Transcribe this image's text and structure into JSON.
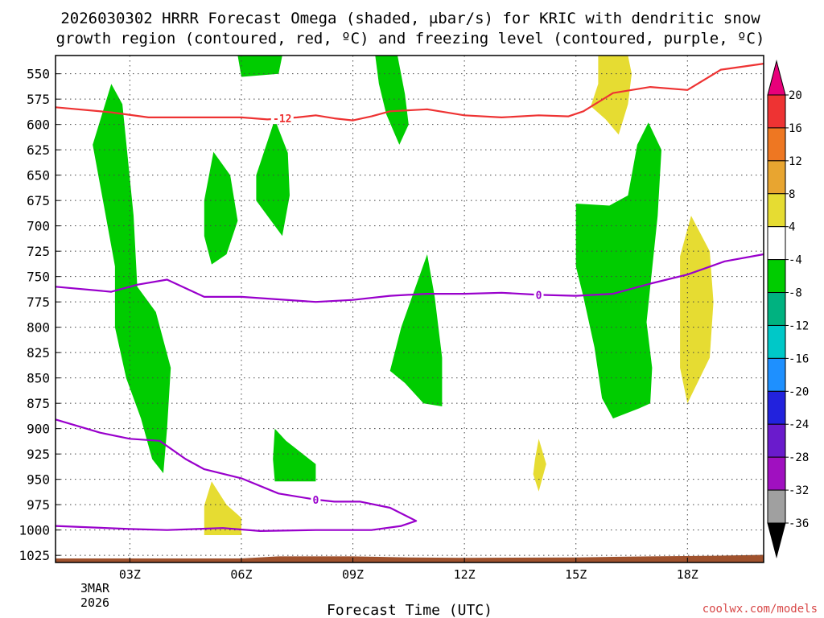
{
  "chart_data": {
    "type": "time-height cross section",
    "title_line1": "2026030302 HRRR Forecast Omega (shaded, μbar/s) for KRIC with dendritic snow",
    "title_line2": "growth region (contoured, red, ºC) and freezing level (contoured, purple, ºC)",
    "xlabel": "Forecast Time (UTC)",
    "date_label_line1": "3MAR",
    "date_label_line2": "2026",
    "credit": "coolwx.com/models",
    "x_range_hours": [
      1.0,
      20.05
    ],
    "y_range_hpa": [
      532,
      1032
    ],
    "x_ticks": [
      {
        "hour": 3,
        "label": "03Z"
      },
      {
        "hour": 6,
        "label": "06Z"
      },
      {
        "hour": 9,
        "label": "09Z"
      },
      {
        "hour": 12,
        "label": "12Z"
      },
      {
        "hour": 15,
        "label": "15Z"
      },
      {
        "hour": 18,
        "label": "18Z"
      }
    ],
    "y_ticks": [
      550,
      575,
      600,
      625,
      650,
      675,
      700,
      725,
      750,
      775,
      800,
      825,
      850,
      875,
      900,
      925,
      950,
      975,
      1000,
      1025
    ],
    "colorbar": {
      "labels": [
        "20",
        "16",
        "12",
        "8",
        "4",
        "-4",
        "-8",
        "-12",
        "-16",
        "-20",
        "-24",
        "-28",
        "-32",
        "-36"
      ],
      "bins": [
        {
          "from": 20,
          "to": 16,
          "color": "#ee3333"
        },
        {
          "from": 16,
          "to": 12,
          "color": "#ee7722"
        },
        {
          "from": 12,
          "to": 8,
          "color": "#e8a530"
        },
        {
          "from": 8,
          "to": 4,
          "color": "#e6dc32"
        },
        {
          "from": 4,
          "to": -4,
          "color": "#ffffff"
        },
        {
          "from": -4,
          "to": -8,
          "color": "#00cc00"
        },
        {
          "from": -8,
          "to": -12,
          "color": "#00b280"
        },
        {
          "from": -12,
          "to": -16,
          "color": "#00c8c8"
        },
        {
          "from": -16,
          "to": -20,
          "color": "#1e90ff"
        },
        {
          "from": -20,
          "to": -24,
          "color": "#2222dd"
        },
        {
          "from": -24,
          "to": -28,
          "color": "#6a1bcc"
        },
        {
          "from": -28,
          "to": -32,
          "color": "#a010c0"
        },
        {
          "from": -32,
          "to": -36,
          "color": "#a0a0a0"
        }
      ],
      "overflow_high_color": "#e8007a",
      "overflow_low_color": "#000000"
    },
    "omega_regions": [
      {
        "color": "#00cc00",
        "points": [
          [
            2.0,
            620
          ],
          [
            2.5,
            560
          ],
          [
            2.8,
            580
          ],
          [
            3.1,
            690
          ],
          [
            3.2,
            760
          ],
          [
            3.7,
            785
          ],
          [
            4.1,
            840
          ],
          [
            4.0,
            900
          ],
          [
            3.9,
            944
          ],
          [
            3.6,
            930
          ],
          [
            3.3,
            890
          ],
          [
            2.9,
            850
          ],
          [
            2.6,
            800
          ],
          [
            2.6,
            740
          ],
          [
            2.3,
            680
          ]
        ]
      },
      {
        "color": "#00cc00",
        "points": [
          [
            5.0,
            675
          ],
          [
            5.25,
            627
          ],
          [
            5.7,
            650
          ],
          [
            5.9,
            695
          ],
          [
            5.6,
            728
          ],
          [
            5.2,
            738
          ],
          [
            5.0,
            710
          ]
        ]
      },
      {
        "color": "#00cc00",
        "points": [
          [
            6.4,
            650
          ],
          [
            6.9,
            595
          ],
          [
            7.25,
            628
          ],
          [
            7.3,
            670
          ],
          [
            7.1,
            710
          ],
          [
            6.8,
            695
          ],
          [
            6.4,
            675
          ]
        ]
      },
      {
        "color": "#00cc00",
        "points": [
          [
            5.9,
            532
          ],
          [
            7.1,
            532
          ],
          [
            7.0,
            550
          ],
          [
            6.0,
            553
          ]
        ]
      },
      {
        "color": "#00cc00",
        "points": [
          [
            9.6,
            532
          ],
          [
            10.2,
            532
          ],
          [
            10.4,
            570
          ],
          [
            10.5,
            600
          ],
          [
            10.25,
            620
          ],
          [
            9.9,
            590
          ],
          [
            9.7,
            560
          ]
        ]
      },
      {
        "color": "#00cc00",
        "points": [
          [
            10.0,
            843
          ],
          [
            10.3,
            800
          ],
          [
            11.0,
            728
          ],
          [
            11.2,
            770
          ],
          [
            11.4,
            830
          ],
          [
            11.4,
            878
          ],
          [
            10.9,
            875
          ],
          [
            10.4,
            855
          ]
        ]
      },
      {
        "color": "#00cc00",
        "points": [
          [
            6.9,
            900
          ],
          [
            7.2,
            912
          ],
          [
            8.0,
            935
          ],
          [
            8.0,
            952
          ],
          [
            6.9,
            952
          ],
          [
            6.85,
            930
          ]
        ]
      },
      {
        "color": "#00cc00",
        "points": [
          [
            15.0,
            678
          ],
          [
            15.9,
            680
          ],
          [
            16.4,
            670
          ],
          [
            16.65,
            620
          ],
          [
            16.95,
            598
          ],
          [
            17.3,
            625
          ],
          [
            17.2,
            690
          ],
          [
            17.0,
            760
          ],
          [
            16.9,
            795
          ],
          [
            17.05,
            840
          ],
          [
            17.0,
            875
          ],
          [
            16.7,
            880
          ],
          [
            16.0,
            890
          ],
          [
            15.7,
            870
          ],
          [
            15.5,
            820
          ],
          [
            15.2,
            770
          ],
          [
            15.0,
            740
          ]
        ]
      },
      {
        "color": "#e6dc32",
        "points": [
          [
            5.0,
            976
          ],
          [
            5.2,
            952
          ],
          [
            5.6,
            975
          ],
          [
            6.0,
            988
          ],
          [
            6.0,
            1005
          ],
          [
            5.0,
            1005
          ]
        ]
      },
      {
        "color": "#e6dc32",
        "points": [
          [
            13.9,
            930
          ],
          [
            14.0,
            910
          ],
          [
            14.2,
            935
          ],
          [
            14.0,
            962
          ],
          [
            13.85,
            945
          ]
        ]
      },
      {
        "color": "#e6dc32",
        "points": [
          [
            15.6,
            532
          ],
          [
            16.4,
            532
          ],
          [
            16.5,
            550
          ],
          [
            16.4,
            580
          ],
          [
            16.15,
            610
          ],
          [
            15.8,
            595
          ],
          [
            15.4,
            582
          ],
          [
            15.6,
            560
          ]
        ]
      },
      {
        "color": "#e6dc32",
        "points": [
          [
            17.8,
            730
          ],
          [
            18.1,
            690
          ],
          [
            18.6,
            725
          ],
          [
            18.7,
            775
          ],
          [
            18.6,
            830
          ],
          [
            18.0,
            875
          ],
          [
            17.8,
            840
          ]
        ]
      }
    ],
    "terrain": {
      "color": "#a0522d",
      "top_points": [
        [
          1.0,
          1028
        ],
        [
          6.0,
          1028
        ],
        [
          7.0,
          1026
        ],
        [
          9.0,
          1026
        ],
        [
          10.5,
          1027
        ],
        [
          12.0,
          1027.5
        ],
        [
          15.0,
          1027
        ],
        [
          17.0,
          1026
        ],
        [
          18.5,
          1025.5
        ],
        [
          20.05,
          1024.5
        ]
      ]
    },
    "dgz_line": {
      "label": "-12",
      "label_at_hour": 7.1,
      "color": "#ee3333",
      "points": [
        [
          1.0,
          583
        ],
        [
          2.5,
          588
        ],
        [
          3.5,
          593
        ],
        [
          6.0,
          593
        ],
        [
          6.7,
          595
        ],
        [
          7.5,
          593
        ],
        [
          8.0,
          591
        ],
        [
          8.5,
          594
        ],
        [
          9.0,
          596
        ],
        [
          9.5,
          592
        ],
        [
          10.0,
          587
        ],
        [
          11.0,
          585
        ],
        [
          12.0,
          591
        ],
        [
          13.0,
          593
        ],
        [
          14.0,
          591
        ],
        [
          14.8,
          592
        ],
        [
          15.2,
          587
        ],
        [
          15.6,
          578
        ],
        [
          16.0,
          569
        ],
        [
          17.0,
          563
        ],
        [
          18.0,
          566
        ],
        [
          18.9,
          546
        ],
        [
          20.05,
          540
        ]
      ]
    },
    "freezing_level": {
      "label": "0",
      "color": "#9900cc",
      "upper": {
        "label_at_hour": 14.0,
        "points": [
          [
            1.0,
            760
          ],
          [
            2.5,
            765
          ],
          [
            3.2,
            758
          ],
          [
            4.0,
            753
          ],
          [
            5.0,
            770
          ],
          [
            6.0,
            770
          ],
          [
            8.0,
            775
          ],
          [
            9.0,
            773
          ],
          [
            10.0,
            769
          ],
          [
            11.0,
            767
          ],
          [
            12.0,
            767
          ],
          [
            13.0,
            766
          ],
          [
            14.0,
            768
          ],
          [
            15.0,
            769
          ],
          [
            16.0,
            767
          ],
          [
            17.0,
            757
          ],
          [
            18.0,
            748
          ],
          [
            19.0,
            735
          ],
          [
            20.05,
            728
          ]
        ]
      },
      "lower": {
        "label_at_hour": 8.0,
        "points": [
          [
            1.0,
            891
          ],
          [
            2.2,
            904
          ],
          [
            3.0,
            910
          ],
          [
            3.8,
            912
          ],
          [
            4.5,
            930
          ],
          [
            5.0,
            940
          ],
          [
            6.0,
            949
          ],
          [
            7.0,
            964
          ],
          [
            8.0,
            970
          ],
          [
            8.5,
            972
          ],
          [
            9.2,
            972
          ],
          [
            10.0,
            978
          ],
          [
            10.7,
            991
          ],
          [
            10.3,
            996
          ],
          [
            9.5,
            1000
          ],
          [
            8.0,
            1000
          ],
          [
            6.5,
            1001
          ],
          [
            5.5,
            998
          ],
          [
            4.0,
            1000
          ],
          [
            3.0,
            999
          ],
          [
            1.0,
            996
          ]
        ]
      }
    }
  }
}
